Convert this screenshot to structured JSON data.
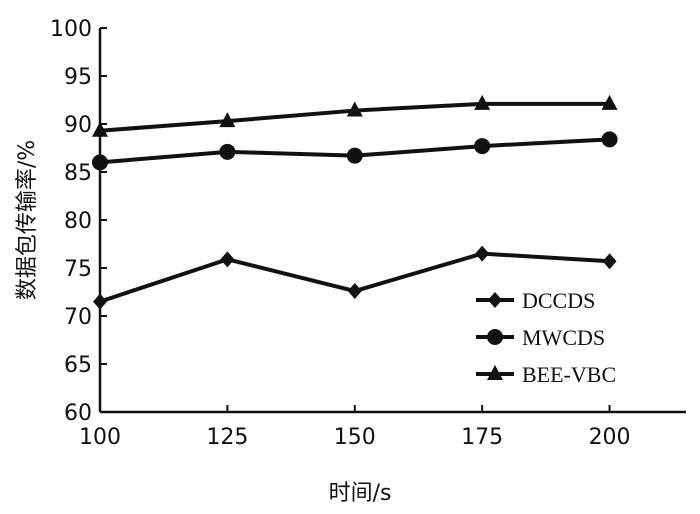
{
  "chart_data": {
    "type": "line",
    "x": [
      100,
      125,
      150,
      175,
      200
    ],
    "xlim": [
      100,
      215
    ],
    "ylim": [
      60,
      100
    ],
    "xticks": [
      "100",
      "125",
      "150",
      "175",
      "200"
    ],
    "yticks": [
      "60",
      "65",
      "70",
      "75",
      "80",
      "85",
      "90",
      "95",
      "100"
    ],
    "xlabel": "时间/s",
    "ylabel": "数据包传输率/%",
    "grid": false,
    "legend_position": "bottom-right",
    "series": [
      {
        "name": "DCCDS",
        "marker": "diamond",
        "values": [
          71.5,
          75.9,
          72.6,
          76.5,
          75.7
        ]
      },
      {
        "name": "MWCDS",
        "marker": "circle",
        "values": [
          86.0,
          87.1,
          86.7,
          87.7,
          88.4
        ]
      },
      {
        "name": "BEE-VBC",
        "marker": "triangle",
        "values": [
          89.3,
          90.3,
          91.4,
          92.1,
          92.1
        ]
      }
    ],
    "color": "#111111"
  }
}
